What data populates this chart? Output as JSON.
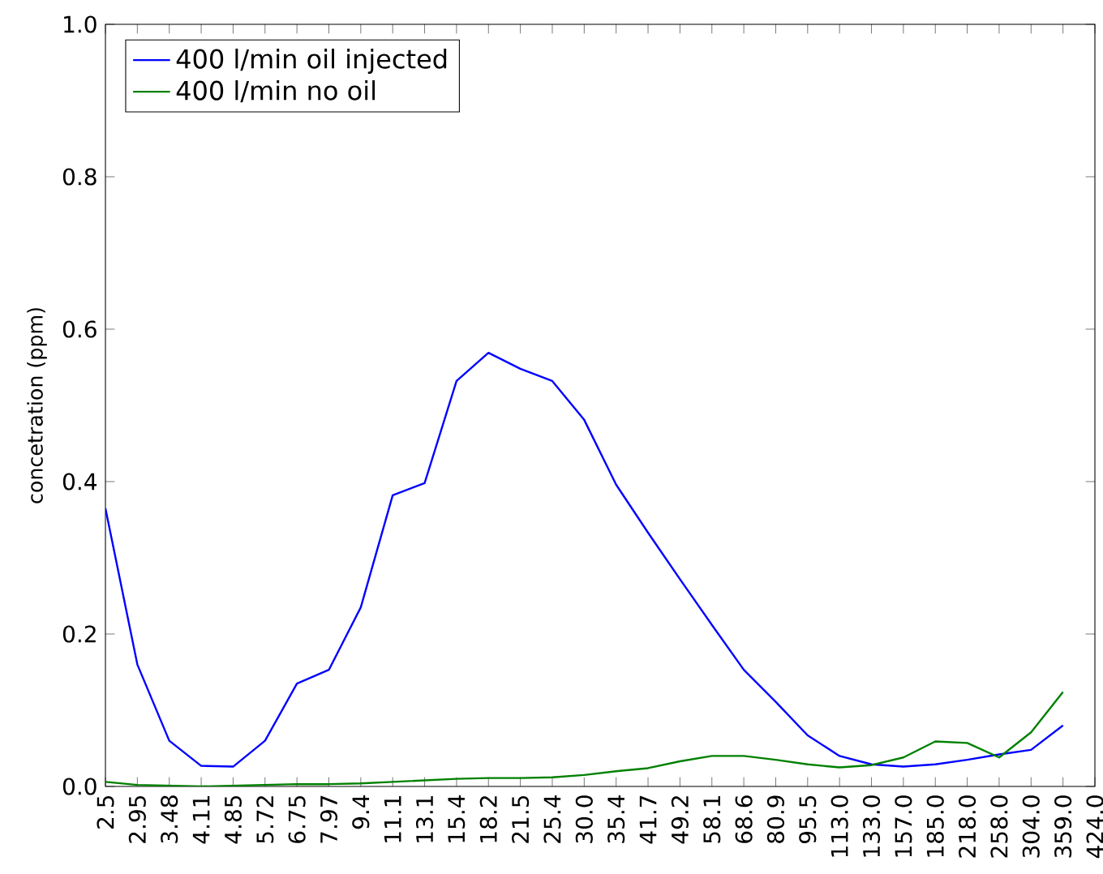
{
  "chart_data": {
    "type": "line",
    "ylabel": "concetration (ppm)",
    "categories": [
      "2.5",
      "2.95",
      "3.48",
      "4.11",
      "4.85",
      "5.72",
      "6.75",
      "7.97",
      "9.4",
      "11.1",
      "13.1",
      "15.4",
      "18.2",
      "21.5",
      "25.4",
      "30.0",
      "35.4",
      "41.7",
      "49.2",
      "58.1",
      "68.6",
      "80.9",
      "95.5",
      "113.0",
      "133.0",
      "157.0",
      "185.0",
      "218.0",
      "258.0",
      "304.0",
      "359.0",
      "424.0"
    ],
    "series": [
      {
        "name": "400 l/min oil injected",
        "color": "#0000ff",
        "values": [
          0.365,
          0.16,
          0.06,
          0.027,
          0.026,
          0.06,
          0.135,
          0.153,
          0.235,
          0.382,
          0.398,
          0.532,
          0.569,
          0.548,
          0.532,
          0.481,
          0.396,
          0.333,
          0.272,
          0.212,
          0.153,
          0.111,
          0.067,
          0.04,
          0.029,
          0.026,
          0.029,
          0.035,
          0.042,
          0.048,
          0.08,
          null
        ]
      },
      {
        "name": "400 l/min no oil",
        "color": "#008000",
        "values": [
          0.006,
          0.002,
          0.001,
          0.0,
          0.001,
          0.002,
          0.003,
          0.003,
          0.004,
          0.006,
          0.008,
          0.01,
          0.011,
          0.011,
          0.012,
          0.015,
          0.02,
          0.024,
          0.033,
          0.04,
          0.04,
          0.035,
          0.029,
          0.025,
          0.028,
          0.038,
          0.059,
          0.057,
          0.038,
          0.071,
          0.124,
          null
        ]
      }
    ],
    "ylim": [
      0,
      1.0
    ],
    "yticks": [
      {
        "value": 0,
        "label": "0.0"
      },
      0.2,
      0.4,
      0.6,
      0.8,
      {
        "value": 1,
        "label": "1.0"
      }
    ],
    "legend": "top left",
    "grid": false
  }
}
